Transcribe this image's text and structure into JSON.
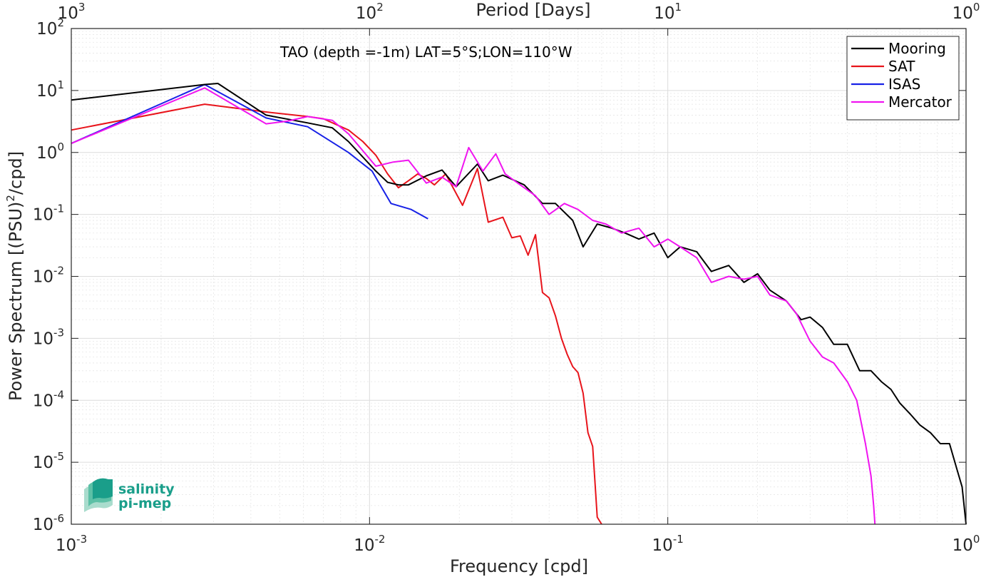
{
  "chart_data": {
    "type": "line",
    "title": "",
    "annotation": "TAO (depth =-1m) LAT=5°S;LON=110°W",
    "xlabel": "Frequency [cpd]",
    "ylabel": "Power Spectrum [(PSU)^2/cpd]",
    "top_xlabel": "Period [Days]",
    "xscale": "log",
    "yscale": "log",
    "xlim": [
      0.001,
      1
    ],
    "ylim": [
      1e-06,
      100
    ],
    "grid": true,
    "legend_position": "top-right",
    "x_ticks": [
      {
        "v": 0.001,
        "base": "10",
        "exp": "-3"
      },
      {
        "v": 0.01,
        "base": "10",
        "exp": "-2"
      },
      {
        "v": 0.1,
        "base": "10",
        "exp": "-1"
      },
      {
        "v": 1,
        "base": "10",
        "exp": "0"
      }
    ],
    "top_ticks": [
      {
        "v": 0.001,
        "base": "10",
        "exp": "3"
      },
      {
        "v": 0.01,
        "base": "10",
        "exp": "2"
      },
      {
        "v": 0.1,
        "base": "10",
        "exp": "1"
      },
      {
        "v": 1,
        "base": "10",
        "exp": "0"
      }
    ],
    "y_ticks": [
      {
        "v": 100,
        "base": "10",
        "exp": "2"
      },
      {
        "v": 10,
        "base": "10",
        "exp": "1"
      },
      {
        "v": 1,
        "base": "10",
        "exp": "0"
      },
      {
        "v": 0.1,
        "base": "10",
        "exp": "-1"
      },
      {
        "v": 0.01,
        "base": "10",
        "exp": "-2"
      },
      {
        "v": 0.001,
        "base": "10",
        "exp": "-3"
      },
      {
        "v": 0.0001,
        "base": "10",
        "exp": "-4"
      },
      {
        "v": 1e-05,
        "base": "10",
        "exp": "-5"
      },
      {
        "v": 1e-06,
        "base": "10",
        "exp": "-6"
      }
    ],
    "series": [
      {
        "name": "Mooring",
        "color": "#000000",
        "x": [
          0.001,
          0.0028,
          0.0031,
          0.0045,
          0.0062,
          0.0075,
          0.0085,
          0.0105,
          0.0115,
          0.0125,
          0.0135,
          0.0155,
          0.0175,
          0.0195,
          0.023,
          0.025,
          0.028,
          0.033,
          0.038,
          0.042,
          0.048,
          0.052,
          0.058,
          0.065,
          0.072,
          0.08,
          0.09,
          0.1,
          0.11,
          0.125,
          0.14,
          0.16,
          0.18,
          0.2,
          0.22,
          0.25,
          0.28,
          0.3,
          0.33,
          0.36,
          0.4,
          0.44,
          0.48,
          0.52,
          0.56,
          0.6,
          0.65,
          0.7,
          0.76,
          0.82,
          0.88,
          0.93,
          0.97,
          1.0
        ],
        "y": [
          7,
          12.5,
          13,
          4,
          3,
          2.5,
          1.5,
          0.5,
          0.33,
          0.3,
          0.3,
          0.42,
          0.52,
          0.28,
          0.65,
          0.35,
          0.43,
          0.3,
          0.15,
          0.15,
          0.08,
          0.03,
          0.07,
          0.06,
          0.05,
          0.04,
          0.05,
          0.02,
          0.03,
          0.025,
          0.012,
          0.015,
          0.008,
          0.011,
          0.006,
          0.004,
          0.002,
          0.0022,
          0.0015,
          0.0008,
          0.0008,
          0.0003,
          0.0003,
          0.0002,
          0.00015,
          9e-05,
          6e-05,
          4e-05,
          3e-05,
          2e-05,
          2e-05,
          8e-06,
          4e-06,
          1e-06
        ]
      },
      {
        "name": "SAT",
        "color": "#e8141b",
        "x": [
          0.001,
          0.0028,
          0.0045,
          0.0062,
          0.007,
          0.0085,
          0.0095,
          0.0105,
          0.0115,
          0.0125,
          0.0135,
          0.0145,
          0.0155,
          0.0165,
          0.018,
          0.0205,
          0.023,
          0.025,
          0.028,
          0.03,
          0.032,
          0.034,
          0.036,
          0.038,
          0.04,
          0.042,
          0.044,
          0.046,
          0.048,
          0.05,
          0.052,
          0.054,
          0.056,
          0.058,
          0.06
        ],
        "y": [
          2.3,
          6,
          4.5,
          3.8,
          3.5,
          2.3,
          1.5,
          0.9,
          0.45,
          0.27,
          0.35,
          0.45,
          0.38,
          0.3,
          0.45,
          0.14,
          0.55,
          0.075,
          0.09,
          0.042,
          0.045,
          0.022,
          0.047,
          0.0055,
          0.0045,
          0.0023,
          0.001,
          0.00055,
          0.00035,
          0.00028,
          0.00013,
          3e-05,
          1.8e-05,
          1.3e-06,
          1e-06
        ]
      },
      {
        "name": "ISAS",
        "color": "#1721e6",
        "x": [
          0.001,
          0.0028,
          0.0045,
          0.0062,
          0.0085,
          0.0102,
          0.0118,
          0.0138,
          0.0157
        ],
        "y": [
          1.4,
          12.5,
          3.6,
          2.6,
          1,
          0.5,
          0.15,
          0.12,
          0.085
        ]
      },
      {
        "name": "Mercator",
        "color": "#f014f0",
        "x": [
          0.001,
          0.0028,
          0.0045,
          0.0053,
          0.0062,
          0.0075,
          0.0085,
          0.0105,
          0.012,
          0.0135,
          0.0155,
          0.0175,
          0.0195,
          0.0215,
          0.024,
          0.0265,
          0.0285,
          0.032,
          0.036,
          0.04,
          0.045,
          0.05,
          0.056,
          0.062,
          0.07,
          0.08,
          0.09,
          0.1,
          0.11,
          0.125,
          0.14,
          0.16,
          0.18,
          0.2,
          0.22,
          0.25,
          0.27,
          0.3,
          0.33,
          0.36,
          0.4,
          0.43,
          0.46,
          0.48,
          0.49,
          0.495
        ],
        "y": [
          1.4,
          11,
          2.9,
          3.2,
          3.8,
          3.3,
          2,
          0.6,
          0.7,
          0.75,
          0.32,
          0.4,
          0.28,
          1.2,
          0.5,
          0.95,
          0.45,
          0.3,
          0.2,
          0.1,
          0.15,
          0.12,
          0.08,
          0.07,
          0.05,
          0.06,
          0.03,
          0.04,
          0.03,
          0.02,
          0.008,
          0.01,
          0.009,
          0.01,
          0.005,
          0.004,
          0.0025,
          0.0009,
          0.0005,
          0.0004,
          0.0002,
          0.0001,
          2e-05,
          6e-06,
          2e-06,
          1e-06
        ]
      }
    ]
  },
  "logo": {
    "line1": "salinity",
    "line2": "pi-mep"
  }
}
